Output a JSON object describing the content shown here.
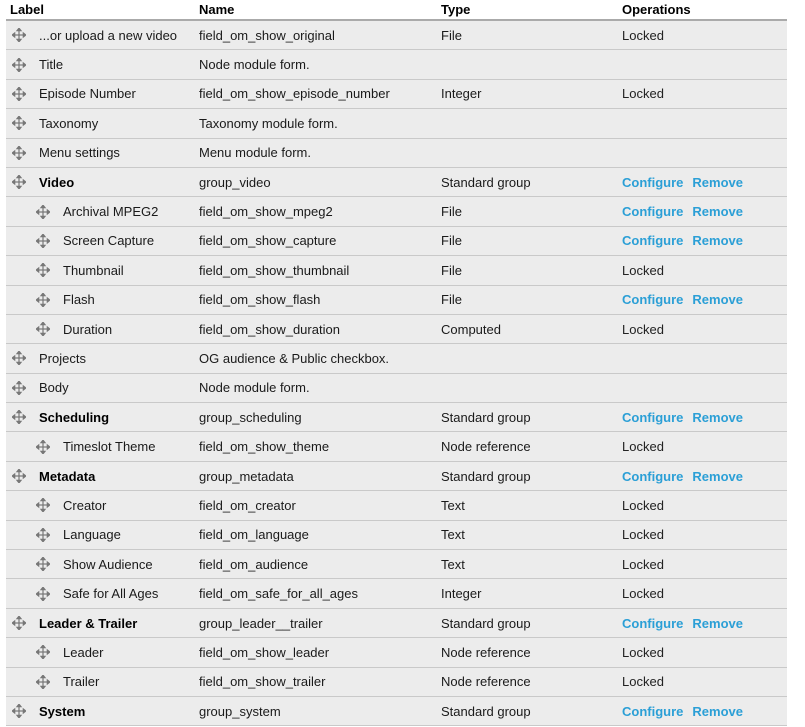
{
  "colors": {
    "row_bg": "#ececec",
    "row_border": "#c9c9c9",
    "header_border": "#aaaaaa",
    "link": "#2b9fd6",
    "handle": "#777777"
  },
  "table": {
    "columns": {
      "label": "Label",
      "name": "Name",
      "type": "Type",
      "operations": "Operations"
    },
    "operations_labels": {
      "configure": "Configure",
      "remove": "Remove",
      "locked": "Locked"
    },
    "rows": [
      {
        "label": "...or upload a new video",
        "name": "field_om_show_original",
        "type": "File",
        "ops": "locked",
        "indent": 0,
        "bold": false
      },
      {
        "label": "Title",
        "name": "Node module form.",
        "type": "",
        "ops": "none",
        "indent": 0,
        "bold": false
      },
      {
        "label": "Episode Number",
        "name": "field_om_show_episode_number",
        "type": "Integer",
        "ops": "locked",
        "indent": 0,
        "bold": false
      },
      {
        "label": "Taxonomy",
        "name": "Taxonomy module form.",
        "type": "",
        "ops": "none",
        "indent": 0,
        "bold": false
      },
      {
        "label": "Menu settings",
        "name": "Menu module form.",
        "type": "",
        "ops": "none",
        "indent": 0,
        "bold": false
      },
      {
        "label": "Video",
        "name": "group_video",
        "type": "Standard group",
        "ops": "links",
        "indent": 0,
        "bold": true
      },
      {
        "label": "Archival MPEG2",
        "name": "field_om_show_mpeg2",
        "type": "File",
        "ops": "links",
        "indent": 1,
        "bold": false
      },
      {
        "label": "Screen Capture",
        "name": "field_om_show_capture",
        "type": "File",
        "ops": "links",
        "indent": 1,
        "bold": false
      },
      {
        "label": "Thumbnail",
        "name": "field_om_show_thumbnail",
        "type": "File",
        "ops": "locked",
        "indent": 1,
        "bold": false
      },
      {
        "label": "Flash",
        "name": "field_om_show_flash",
        "type": "File",
        "ops": "links",
        "indent": 1,
        "bold": false
      },
      {
        "label": "Duration",
        "name": "field_om_show_duration",
        "type": "Computed",
        "ops": "locked",
        "indent": 1,
        "bold": false
      },
      {
        "label": "Projects",
        "name": "OG audience & Public checkbox.",
        "type": "",
        "ops": "none",
        "indent": 0,
        "bold": false
      },
      {
        "label": "Body",
        "name": "Node module form.",
        "type": "",
        "ops": "none",
        "indent": 0,
        "bold": false
      },
      {
        "label": "Scheduling",
        "name": "group_scheduling",
        "type": "Standard group",
        "ops": "links",
        "indent": 0,
        "bold": true
      },
      {
        "label": "Timeslot Theme",
        "name": "field_om_show_theme",
        "type": "Node reference",
        "ops": "locked",
        "indent": 1,
        "bold": false
      },
      {
        "label": "Metadata",
        "name": "group_metadata",
        "type": "Standard group",
        "ops": "links",
        "indent": 0,
        "bold": true
      },
      {
        "label": "Creator",
        "name": "field_om_creator",
        "type": "Text",
        "ops": "locked",
        "indent": 1,
        "bold": false
      },
      {
        "label": "Language",
        "name": "field_om_language",
        "type": "Text",
        "ops": "locked",
        "indent": 1,
        "bold": false
      },
      {
        "label": "Show Audience",
        "name": "field_om_audience",
        "type": "Text",
        "ops": "locked",
        "indent": 1,
        "bold": false
      },
      {
        "label": "Safe for All Ages",
        "name": "field_om_safe_for_all_ages",
        "type": "Integer",
        "ops": "locked",
        "indent": 1,
        "bold": false
      },
      {
        "label": "Leader & Trailer",
        "name": "group_leader__trailer",
        "type": "Standard group",
        "ops": "links",
        "indent": 0,
        "bold": true
      },
      {
        "label": "Leader",
        "name": "field_om_show_leader",
        "type": "Node reference",
        "ops": "locked",
        "indent": 1,
        "bold": false
      },
      {
        "label": "Trailer",
        "name": "field_om_show_trailer",
        "type": "Node reference",
        "ops": "locked",
        "indent": 1,
        "bold": false
      },
      {
        "label": "System",
        "name": "group_system",
        "type": "Standard group",
        "ops": "links",
        "indent": 0,
        "bold": true
      }
    ]
  }
}
